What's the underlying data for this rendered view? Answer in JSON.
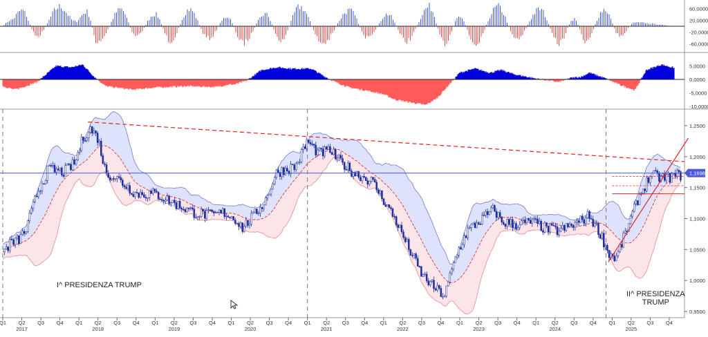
{
  "chart_data": [
    {
      "type": "bar",
      "panel": "top-oscillator",
      "ylim": [
        -80000,
        80000
      ],
      "y_ticks": [
        "60,0000",
        "20,0000",
        "-20,0000",
        "-60,0000"
      ],
      "colors": {
        "positive": "#3f57d8",
        "negative": "#e14b4b"
      },
      "segments": [
        {
          "t": 2017.0,
          "v": 5000
        },
        {
          "t": 2017.1,
          "v": 25000
        },
        {
          "t": 2017.25,
          "v": 65000
        },
        {
          "t": 2017.45,
          "v": -40000
        },
        {
          "t": 2017.75,
          "v": 80000
        },
        {
          "t": 2017.95,
          "v": 20000
        },
        {
          "t": 2018.1,
          "v": 60000
        },
        {
          "t": 2018.25,
          "v": -70000
        },
        {
          "t": 2018.55,
          "v": 70000
        },
        {
          "t": 2018.75,
          "v": -40000
        },
        {
          "t": 2019.0,
          "v": 50000
        },
        {
          "t": 2019.2,
          "v": -60000
        },
        {
          "t": 2019.45,
          "v": 70000
        },
        {
          "t": 2019.7,
          "v": -50000
        },
        {
          "t": 2019.95,
          "v": 40000
        },
        {
          "t": 2020.15,
          "v": -70000
        },
        {
          "t": 2020.45,
          "v": 50000
        },
        {
          "t": 2020.65,
          "v": -60000
        },
        {
          "t": 2020.9,
          "v": 80000
        },
        {
          "t": 2021.2,
          "v": -70000
        },
        {
          "t": 2021.55,
          "v": 65000
        },
        {
          "t": 2021.8,
          "v": -50000
        },
        {
          "t": 2022.05,
          "v": 50000
        },
        {
          "t": 2022.3,
          "v": -60000
        },
        {
          "t": 2022.6,
          "v": 80000
        },
        {
          "t": 2022.8,
          "v": -70000
        },
        {
          "t": 2023.0,
          "v": 40000
        },
        {
          "t": 2023.2,
          "v": -70000
        },
        {
          "t": 2023.5,
          "v": 80000
        },
        {
          "t": 2023.75,
          "v": -50000
        },
        {
          "t": 2024.05,
          "v": 70000
        },
        {
          "t": 2024.3,
          "v": -70000
        },
        {
          "t": 2024.5,
          "v": 30000
        },
        {
          "t": 2024.65,
          "v": -60000
        },
        {
          "t": 2024.9,
          "v": 70000
        },
        {
          "t": 2025.1,
          "v": -40000
        },
        {
          "t": 2025.3,
          "v": 15000
        },
        {
          "t": 2025.9,
          "v": 0
        }
      ]
    },
    {
      "type": "area",
      "panel": "middle-oscillator",
      "ylim": [
        -13000,
        9000
      ],
      "y_ticks": [
        "5,0000",
        "0,0000",
        "-5,0000",
        "-10,0000"
      ],
      "colors": {
        "positive": "#0000dd",
        "negative": "#ff5b5b"
      },
      "x": [
        2016.95,
        2017.15,
        2017.25,
        2017.45,
        2017.7,
        2017.9,
        2018.05,
        2018.2,
        2018.35,
        2018.7,
        2019.0,
        2019.4,
        2019.8,
        2019.95,
        2020.05,
        2020.2,
        2020.4,
        2020.6,
        2020.8,
        2021.05,
        2021.2,
        2021.35,
        2021.55,
        2021.75,
        2022.0,
        2022.15,
        2022.35,
        2022.55,
        2022.7,
        2023.0,
        2023.2,
        2023.4,
        2023.55,
        2023.7,
        2024.0,
        2024.3,
        2024.45,
        2024.6,
        2024.7,
        2024.9,
        2025.1,
        2025.3,
        2025.45,
        2025.65,
        2025.85
      ],
      "values": [
        -2000,
        -3800,
        -3000,
        -1000,
        5000,
        4500,
        5500,
        1000,
        -2500,
        -3800,
        -3000,
        -2500,
        -2800,
        -2000,
        -1800,
        -500,
        3500,
        4500,
        4000,
        4000,
        1500,
        -800,
        -3000,
        -4000,
        -5500,
        -7500,
        -8500,
        -9500,
        -7000,
        2500,
        4000,
        2500,
        3500,
        2000,
        300,
        -1000,
        500,
        1000,
        2500,
        500,
        -2000,
        -4000,
        3500,
        5500,
        4000
      ]
    },
    {
      "type": "candlestick",
      "panel": "main",
      "ylim": [
        0.94,
        1.28
      ],
      "y_ticks": [
        "1,2500",
        "1,2000",
        "1,1500",
        "1,1000",
        "1,0500",
        "1,0000",
        "0,9500"
      ],
      "last_value_label": "1,1698",
      "x_ticks": [
        "Q1",
        "Q2",
        "Q3",
        "Q4",
        "Q1",
        "Q2",
        "Q3",
        "Q4",
        "Q1",
        "Q2",
        "Q3",
        "Q4",
        "Q1",
        "Q2",
        "Q3",
        "Q4",
        "Q1",
        "Q2",
        "Q3",
        "Q4",
        "Q1",
        "Q2",
        "Q3",
        "Q4",
        "Q1",
        "Q2",
        "Q3",
        "Q4",
        "Q1",
        "Q2",
        "Q3",
        "Q4",
        "Q1",
        "Q2",
        "Q3",
        "Q4"
      ],
      "years": [
        "2017",
        "2018",
        "2019",
        "2020",
        "2021",
        "2022",
        "2023",
        "2024",
        "2025"
      ],
      "price_path": {
        "x": [
          2017.0,
          2017.1,
          2017.2,
          2017.3,
          2017.45,
          2017.6,
          2017.8,
          2017.95,
          2018.05,
          2018.15,
          2018.25,
          2018.35,
          2018.5,
          2018.75,
          2019.0,
          2019.25,
          2019.5,
          2019.75,
          2019.9,
          2020.05,
          2020.15,
          2020.3,
          2020.45,
          2020.6,
          2020.85,
          2021.0,
          2021.15,
          2021.3,
          2021.4,
          2021.6,
          2021.85,
          2022.0,
          2022.15,
          2022.3,
          2022.5,
          2022.65,
          2022.8,
          2022.95,
          2023.1,
          2023.3,
          2023.45,
          2023.55,
          2023.75,
          2023.95,
          2024.1,
          2024.3,
          2024.5,
          2024.7,
          2024.85,
          2024.95,
          2025.05,
          2025.2,
          2025.35,
          2025.5,
          2025.7,
          2025.85
        ],
        "y": [
          1.045,
          1.06,
          1.065,
          1.08,
          1.14,
          1.18,
          1.175,
          1.19,
          1.23,
          1.245,
          1.23,
          1.175,
          1.165,
          1.14,
          1.14,
          1.125,
          1.11,
          1.105,
          1.11,
          1.1,
          1.085,
          1.105,
          1.13,
          1.175,
          1.185,
          1.225,
          1.205,
          1.21,
          1.195,
          1.175,
          1.16,
          1.13,
          1.1,
          1.06,
          1.01,
          0.99,
          0.975,
          1.04,
          1.08,
          1.1,
          1.115,
          1.095,
          1.09,
          1.095,
          1.085,
          1.08,
          1.09,
          1.105,
          1.075,
          1.045,
          1.035,
          1.085,
          1.135,
          1.17,
          1.165,
          1.17
        ]
      },
      "bollinger": {
        "upper_color": "#6f7ad6",
        "lower_color": "#e88a8a",
        "upper_fill": "#dfe2fb",
        "lower_fill": "#fbe5e8"
      },
      "moving_average_color": "#e02020",
      "horizontal_lines": [
        {
          "y": 1.1735,
          "color": "#4a5ad8",
          "style": "solid"
        },
        {
          "y": 1.14,
          "color": "#e02020",
          "style": "solid",
          "from": 2025.0
        },
        {
          "y": 1.153,
          "color": "#e02020",
          "style": "dashed",
          "from": 2025.0
        },
        {
          "y": 1.168,
          "color": "#e02020",
          "style": "dashed",
          "from": 2025.0
        }
      ],
      "trendlines": [
        {
          "x1": 2018.12,
          "y1": 1.256,
          "x2": 2025.95,
          "y2": 1.192,
          "color": "#e02020",
          "style": "dashed"
        },
        {
          "x1": 2024.95,
          "y1": 1.03,
          "x2": 2026.0,
          "y2": 1.23,
          "color": "#e02020",
          "style": "solid"
        }
      ],
      "vertical_markers": [
        2017.0,
        2021.0,
        2024.92
      ],
      "annotations": [
        "I^ PRESIDENZA TRUMP",
        "II^ PRESIDENZA",
        "TRUMP"
      ]
    }
  ]
}
